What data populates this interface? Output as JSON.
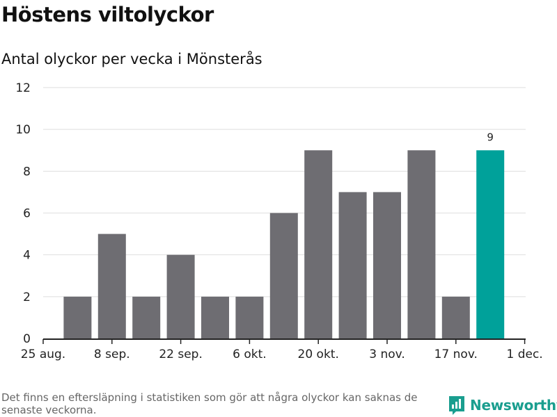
{
  "title": "Höstens viltolyckor",
  "subtitle": "Antal olyckor per vecka i Mönsterås",
  "footnote": "Det finns en eftersläpning i statistiken som gör att några olyckor kan saknas de senaste veckorna.",
  "brand": "Newsworthy",
  "colors": {
    "bar": "#6e6d72",
    "highlight": "#00a19a",
    "grid": "#dedede",
    "axis": "#222222",
    "brand": "#1a9e8f"
  },
  "chart_data": {
    "type": "bar",
    "title": "Höstens viltolyckor",
    "subtitle": "Antal olyckor per vecka i Mönsterås",
    "xlabel": "",
    "ylabel": "",
    "ylim": [
      0,
      12
    ],
    "yticks": [
      0,
      2,
      4,
      6,
      8,
      10,
      12
    ],
    "xticks": [
      "25 aug.",
      "8 sep.",
      "22 sep.",
      "6 okt.",
      "20 okt.",
      "3 nov.",
      "17 nov.",
      "1 dec."
    ],
    "values": [
      2,
      5,
      2,
      4,
      2,
      2,
      6,
      9,
      7,
      7,
      9,
      2,
      9
    ],
    "highlight_index": 12,
    "annotations": [
      {
        "index": 12,
        "text": "9"
      }
    ]
  }
}
